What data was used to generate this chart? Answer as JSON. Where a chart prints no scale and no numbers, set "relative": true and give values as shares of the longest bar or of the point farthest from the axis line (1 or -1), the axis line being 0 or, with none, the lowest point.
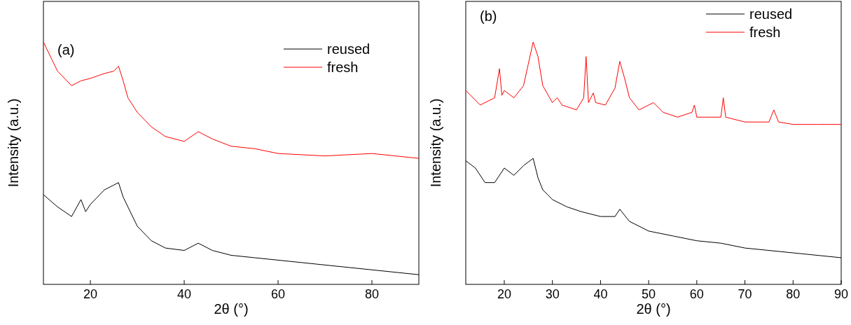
{
  "chart_data": [
    {
      "type": "line",
      "relative": true,
      "annotations": [
        "(a)"
      ],
      "xlabel": "2θ (°)",
      "ylabel": "Intensity (a.u.)",
      "xlim": [
        10,
        90
      ],
      "xticks": [
        20,
        40,
        60,
        80
      ],
      "tick_labels": "x",
      "legend": "top right",
      "series": [
        {
          "name": "reused",
          "color": "#000000",
          "x": [
            10,
            13,
            16,
            18,
            19,
            20,
            23,
            25,
            26,
            27,
            30,
            33,
            36,
            40,
            43,
            46,
            50,
            55,
            60,
            70,
            80,
            90
          ],
          "values": [
            0.37,
            0.32,
            0.28,
            0.35,
            0.3,
            0.33,
            0.39,
            0.41,
            0.42,
            0.36,
            0.24,
            0.18,
            0.15,
            0.14,
            0.17,
            0.14,
            0.12,
            0.11,
            0.1,
            0.08,
            0.06,
            0.04
          ]
        },
        {
          "name": "fresh",
          "color": "#ff0000",
          "x": [
            10,
            13,
            16,
            18,
            20,
            23,
            25,
            26,
            27,
            28,
            30,
            33,
            36,
            40,
            43,
            46,
            50,
            55,
            60,
            70,
            80,
            90
          ],
          "values": [
            1,
            0.88,
            0.82,
            0.84,
            0.85,
            0.87,
            0.88,
            0.9,
            0.84,
            0.77,
            0.71,
            0.65,
            0.61,
            0.59,
            0.63,
            0.6,
            0.57,
            0.56,
            0.54,
            0.53,
            0.54,
            0.52
          ]
        }
      ]
    },
    {
      "type": "line",
      "relative": true,
      "annotations": [
        "(b)"
      ],
      "xlabel": "2θ (°)",
      "ylabel": "Intensity (a.u.)",
      "xlim": [
        12,
        90
      ],
      "xticks": [
        20,
        30,
        40,
        50,
        60,
        70,
        80,
        90
      ],
      "tick_labels": "x",
      "legend": "top right",
      "series": [
        {
          "name": "reused",
          "color": "#000000",
          "x": [
            12,
            14,
            16,
            18,
            20,
            22,
            24,
            26,
            27,
            28,
            30,
            33,
            36,
            40,
            43,
            44,
            46,
            50,
            55,
            60,
            65,
            70,
            75,
            80,
            90
          ],
          "values": [
            0.51,
            0.48,
            0.42,
            0.42,
            0.48,
            0.45,
            0.49,
            0.52,
            0.44,
            0.39,
            0.35,
            0.32,
            0.3,
            0.28,
            0.28,
            0.31,
            0.26,
            0.22,
            0.2,
            0.18,
            0.17,
            0.15,
            0.14,
            0.13,
            0.11
          ]
        },
        {
          "name": "fresh",
          "color": "#ff0000",
          "x": [
            12,
            15,
            18,
            19,
            19.5,
            20,
            22,
            24,
            25,
            26,
            27,
            28,
            30,
            31,
            32,
            35,
            36.5,
            37,
            37.5,
            38.5,
            39,
            41,
            43,
            44,
            45,
            46,
            48,
            50,
            51,
            53,
            56,
            59,
            59.5,
            60,
            63,
            65,
            65.5,
            66,
            70,
            75,
            76,
            77,
            80,
            85,
            90
          ],
          "values": [
            0.8,
            0.74,
            0.77,
            0.89,
            0.78,
            0.8,
            0.77,
            0.82,
            0.91,
            1,
            0.94,
            0.82,
            0.75,
            0.77,
            0.74,
            0.72,
            0.77,
            0.94,
            0.75,
            0.79,
            0.75,
            0.74,
            0.81,
            0.92,
            0.85,
            0.77,
            0.72,
            0.74,
            0.75,
            0.71,
            0.69,
            0.71,
            0.74,
            0.69,
            0.69,
            0.69,
            0.77,
            0.69,
            0.67,
            0.67,
            0.72,
            0.67,
            0.66,
            0.66,
            0.66
          ]
        }
      ]
    }
  ]
}
